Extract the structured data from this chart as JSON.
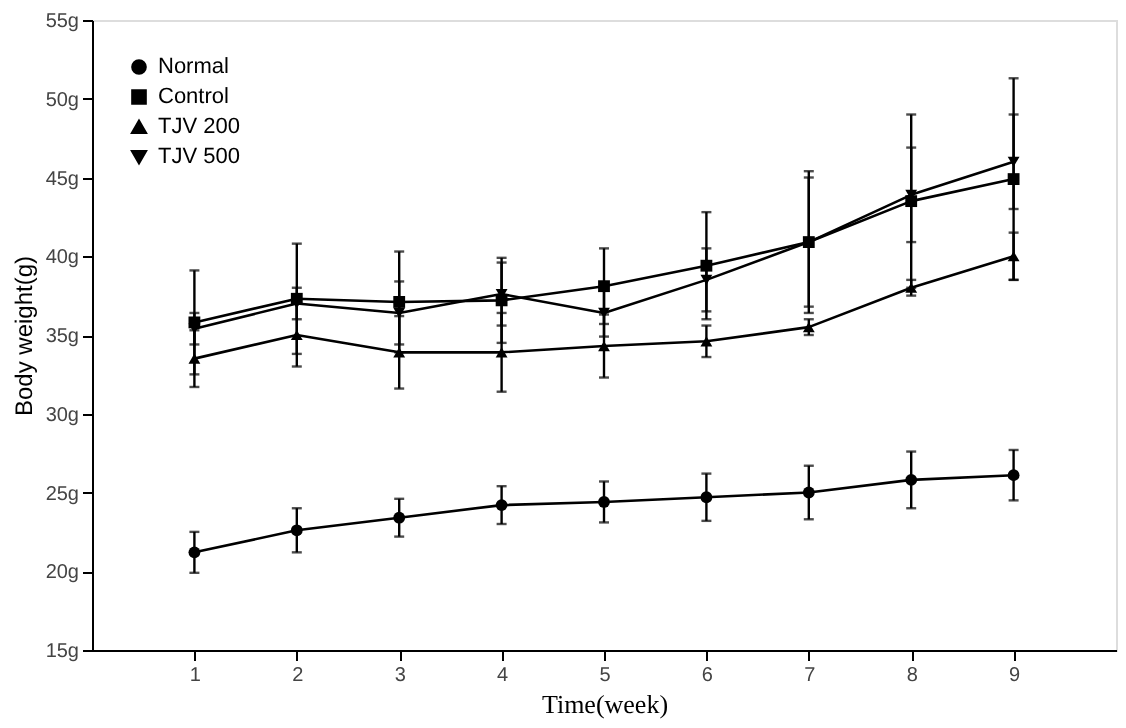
{
  "chart_data": {
    "type": "line",
    "xlabel": "Time(week)",
    "ylabel": "Body weight(g)",
    "x": [
      1,
      2,
      3,
      4,
      5,
      6,
      7,
      8,
      9
    ],
    "xlim": [
      0,
      10
    ],
    "xticks": [
      1,
      2,
      3,
      4,
      5,
      6,
      7,
      8,
      9
    ],
    "ylim": [
      15,
      55
    ],
    "yticks": [
      {
        "value": 15,
        "label": "15g"
      },
      {
        "value": 20,
        "label": "20g"
      },
      {
        "value": 25,
        "label": "25g"
      },
      {
        "value": 30,
        "label": "30g"
      },
      {
        "value": 35,
        "label": "35g"
      },
      {
        "value": 40,
        "label": "40g"
      },
      {
        "value": 45,
        "label": "45g"
      },
      {
        "value": 50,
        "label": "50g"
      },
      {
        "value": 55,
        "label": "55g"
      }
    ],
    "grid": false,
    "legend": "top left",
    "line_style": "solid",
    "series": [
      {
        "name": "Normal",
        "color": "#000000",
        "marker": "circle",
        "values": [
          21.2,
          22.6,
          23.4,
          24.2,
          24.4,
          24.7,
          25.0,
          25.8,
          26.1
        ],
        "errors": [
          1.3,
          1.4,
          1.2,
          1.2,
          1.3,
          1.5,
          1.7,
          1.8,
          1.6
        ]
      },
      {
        "name": "Control",
        "color": "#000000",
        "marker": "square",
        "values": [
          35.8,
          37.3,
          37.1,
          37.2,
          38.1,
          39.4,
          40.9,
          43.5,
          44.9
        ],
        "errors": [
          3.3,
          3.5,
          3.2,
          2.7,
          2.4,
          3.4,
          4.1,
          5.5,
          6.4
        ]
      },
      {
        "name": "TJV 200",
        "color": "#000000",
        "marker": "triangle",
        "values": [
          33.5,
          35.0,
          33.9,
          33.9,
          34.3,
          34.6,
          35.5,
          38.0,
          40.0
        ],
        "errors": [
          1.8,
          2.0,
          2.3,
          2.5,
          2.0,
          1.0,
          0.5,
          0.5,
          1.5
        ]
      },
      {
        "name": "TJV 500",
        "color": "#000000",
        "marker": "triangle-down",
        "values": [
          35.4,
          37.0,
          36.4,
          37.6,
          36.4,
          38.5,
          40.9,
          43.9,
          46.0
        ],
        "errors": [
          1.0,
          1.0,
          2.0,
          2.0,
          1.5,
          2.0,
          4.5,
          3.0,
          3.0
        ]
      }
    ]
  }
}
